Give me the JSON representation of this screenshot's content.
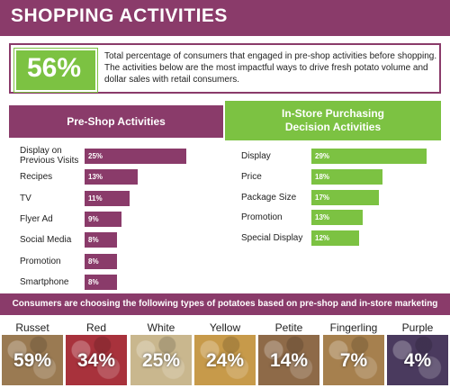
{
  "title": "SHOPPING ACTIVITIES",
  "headline": {
    "stat": "56%",
    "text": "Total percentage of consumers that engaged in pre-shop activities before shopping. The activities below are the most impactful ways to drive fresh potato volume and dollar sales with retail consumers."
  },
  "colors": {
    "purple": "#8a3b6a",
    "green": "#7cc242"
  },
  "chart_data": [
    {
      "type": "bar",
      "orientation": "horizontal",
      "title": "Pre-Shop Activities",
      "categories": [
        "Display on Previous Visits",
        "Recipes",
        "TV",
        "Flyer Ad",
        "Social Media",
        "Promotion",
        "Smartphone"
      ],
      "values": [
        25,
        13,
        11,
        9,
        8,
        8,
        8
      ],
      "labels": [
        "25%",
        "13%",
        "11%",
        "9%",
        "8%",
        "8%",
        "8%"
      ],
      "color": "#8a3b6a"
    },
    {
      "type": "bar",
      "orientation": "horizontal",
      "title": "In-Store Purchasing Decision Activities",
      "categories": [
        "Display",
        "Price",
        "Package Size",
        "Promotion",
        "Special Display"
      ],
      "values": [
        29,
        18,
        17,
        13,
        12
      ],
      "labels": [
        "29%",
        "18%",
        "17%",
        "13%",
        "12%"
      ],
      "color": "#7cc242"
    }
  ],
  "potatoes": {
    "caption": "Consumers are choosing the following types of potatoes based on pre-shop and in-store marketing tactics.",
    "items": [
      {
        "name": "Russet",
        "pct": "59%",
        "color": "#9a7a52"
      },
      {
        "name": "Red",
        "pct": "34%",
        "color": "#a8323c"
      },
      {
        "name": "White",
        "pct": "25%",
        "color": "#c9b78e"
      },
      {
        "name": "Yellow",
        "pct": "24%",
        "color": "#c79a4a"
      },
      {
        "name": "Petite",
        "pct": "14%",
        "color": "#8e6a48"
      },
      {
        "name": "Fingerling",
        "pct": "7%",
        "color": "#a6804e"
      },
      {
        "name": "Purple",
        "pct": "4%",
        "color": "#4a3a5e"
      }
    ]
  }
}
